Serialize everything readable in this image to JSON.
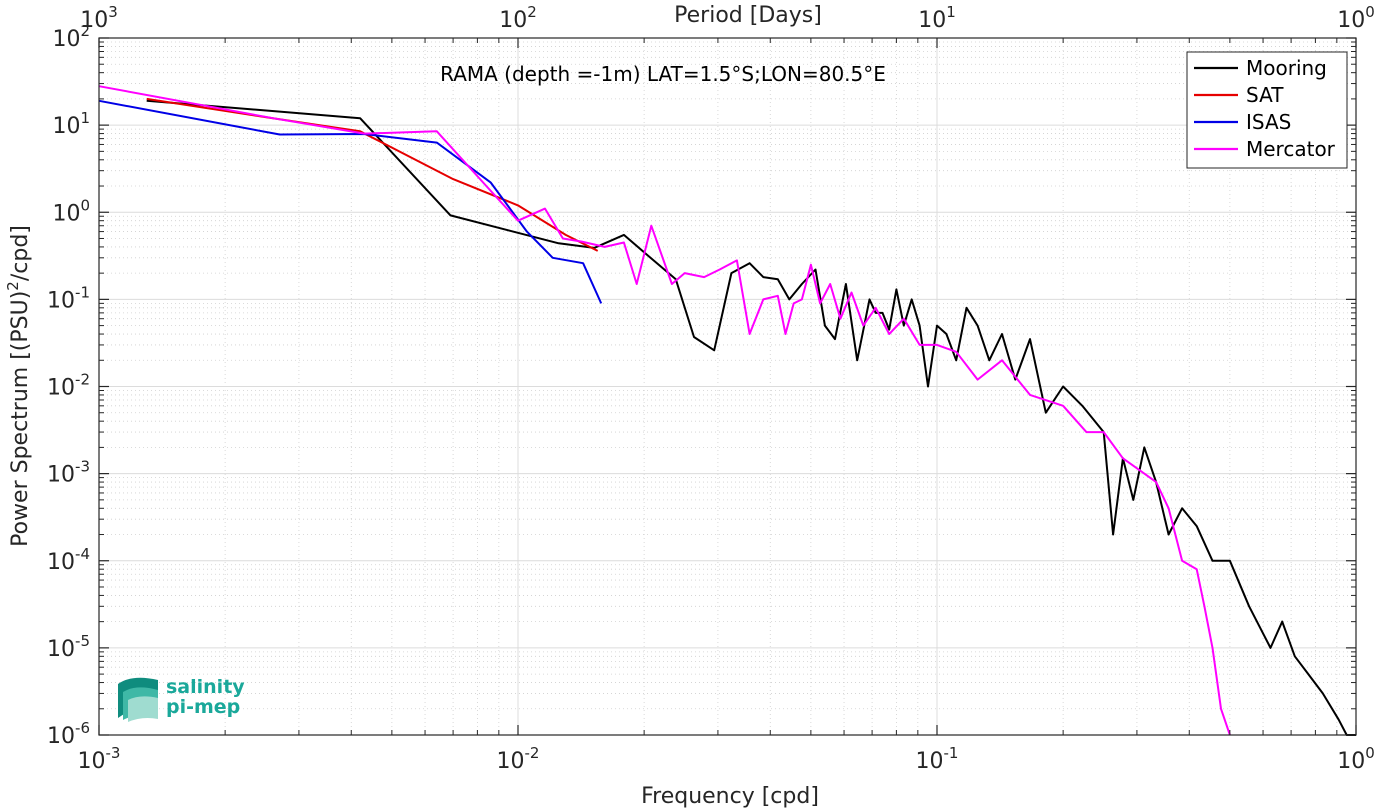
{
  "chart_data": {
    "type": "line",
    "title": "RAMA (depth =-1m) LAT=1.5°S;LON=80.5°E",
    "xlabel": "Frequency [cpd]",
    "ylabel_main": "Power Spectrum [(PSU)",
    "ylabel_sup": "2",
    "ylabel_tail": "/cpd]",
    "top_axis_label": "Period [Days]",
    "x_scale": "log",
    "y_scale": "log",
    "xlim": [
      0.001,
      1
    ],
    "ylim": [
      1e-06,
      100
    ],
    "grid": true,
    "legend_position": "top-right",
    "x_ticks": [
      {
        "base": "10",
        "exp": "-3",
        "value": 0.001
      },
      {
        "base": "10",
        "exp": "-2",
        "value": 0.01
      },
      {
        "base": "10",
        "exp": "-1",
        "value": 0.1
      },
      {
        "base": "10",
        "exp": "0",
        "value": 1
      }
    ],
    "top_ticks": [
      {
        "base": "10",
        "exp": "3",
        "value": 0.001
      },
      {
        "base": "10",
        "exp": "2",
        "value": 0.01
      },
      {
        "base": "10",
        "exp": "1",
        "value": 0.1
      },
      {
        "base": "10",
        "exp": "0",
        "value": 1
      }
    ],
    "y_ticks": [
      {
        "base": "10",
        "exp": "2",
        "value": 100
      },
      {
        "base": "10",
        "exp": "1",
        "value": 10
      },
      {
        "base": "10",
        "exp": "0",
        "value": 1
      },
      {
        "base": "10",
        "exp": "-1",
        "value": 0.1
      },
      {
        "base": "10",
        "exp": "-2",
        "value": 0.01
      },
      {
        "base": "10",
        "exp": "-3",
        "value": 0.001
      },
      {
        "base": "10",
        "exp": "-4",
        "value": 0.0001
      },
      {
        "base": "10",
        "exp": "-5",
        "value": 1e-05
      },
      {
        "base": "10",
        "exp": "-6",
        "value": 1e-06
      }
    ],
    "series": [
      {
        "name": "Mooring",
        "color": "#000000",
        "x": [
          0.0013,
          0.0042,
          0.0069,
          0.0125,
          0.0152,
          0.0179,
          0.0204,
          0.0238,
          0.0263,
          0.0294,
          0.0323,
          0.0357,
          0.0385,
          0.0417,
          0.0444,
          0.0476,
          0.0513,
          0.054,
          0.0571,
          0.0606,
          0.0645,
          0.069,
          0.0714,
          0.0741,
          0.0769,
          0.08,
          0.0833,
          0.087,
          0.0909,
          0.0952,
          0.1,
          0.1053,
          0.1111,
          0.1176,
          0.125,
          0.1333,
          0.1429,
          0.1538,
          0.1667,
          0.1818,
          0.2,
          0.2222,
          0.25,
          0.2632,
          0.2778,
          0.2941,
          0.3125,
          0.3333,
          0.3571,
          0.3846,
          0.4167,
          0.4545,
          0.5,
          0.5556,
          0.625,
          0.6667,
          0.7143,
          0.7692,
          0.8333,
          0.9091,
          0.95,
          1.0
        ],
        "y": [
          19,
          12,
          0.92,
          0.44,
          0.39,
          0.55,
          0.32,
          0.17,
          0.037,
          0.026,
          0.2,
          0.26,
          0.18,
          0.17,
          0.1,
          0.15,
          0.22,
          0.05,
          0.035,
          0.15,
          0.02,
          0.1,
          0.07,
          0.07,
          0.045,
          0.13,
          0.05,
          0.1,
          0.05,
          0.01,
          0.05,
          0.04,
          0.02,
          0.08,
          0.05,
          0.02,
          0.04,
          0.012,
          0.035,
          0.005,
          0.01,
          0.006,
          0.003,
          0.0002,
          0.0015,
          0.0005,
          0.002,
          0.0008,
          0.0002,
          0.0004,
          0.00025,
          0.0001,
          0.0001,
          3e-05,
          1e-05,
          2e-05,
          8e-06,
          5e-06,
          3e-06,
          1.5e-06,
          1e-06,
          1e-06
        ]
      },
      {
        "name": "SAT",
        "color": "#e60000",
        "x": [
          0.0013,
          0.0026,
          0.0042,
          0.007,
          0.01,
          0.013,
          0.0155
        ],
        "y": [
          20,
          12,
          8.5,
          2.4,
          1.2,
          0.55,
          0.36
        ]
      },
      {
        "name": "ISAS",
        "color": "#0000e6",
        "x": [
          0.001,
          0.0027,
          0.0043,
          0.0064,
          0.0086,
          0.0105,
          0.0121,
          0.0143,
          0.0158
        ],
        "y": [
          19,
          7.8,
          7.9,
          6.3,
          2.2,
          0.6,
          0.3,
          0.26,
          0.09
        ]
      },
      {
        "name": "Mercator",
        "color": "#ff00ff",
        "x": [
          0.001,
          0.0026,
          0.0043,
          0.0064,
          0.0084,
          0.01,
          0.0116,
          0.0128,
          0.0142,
          0.0161,
          0.0179,
          0.0192,
          0.0208,
          0.0233,
          0.025,
          0.0278,
          0.0303,
          0.0333,
          0.0357,
          0.0385,
          0.0417,
          0.0435,
          0.0455,
          0.0476,
          0.05,
          0.0526,
          0.0556,
          0.0588,
          0.0625,
          0.0667,
          0.0714,
          0.0769,
          0.0833,
          0.0909,
          0.1,
          0.1111,
          0.125,
          0.1429,
          0.1667,
          0.2,
          0.2273,
          0.25,
          0.2778,
          0.3125,
          0.3333,
          0.3571,
          0.3846,
          0.4167,
          0.4348,
          0.4545,
          0.4762,
          0.5
        ],
        "y": [
          28,
          12,
          8,
          8.5,
          2,
          0.8,
          1.1,
          0.5,
          0.46,
          0.4,
          0.45,
          0.15,
          0.7,
          0.15,
          0.2,
          0.18,
          0.22,
          0.28,
          0.04,
          0.1,
          0.11,
          0.04,
          0.09,
          0.1,
          0.25,
          0.09,
          0.15,
          0.06,
          0.12,
          0.05,
          0.08,
          0.04,
          0.06,
          0.03,
          0.03,
          0.025,
          0.012,
          0.02,
          0.008,
          0.006,
          0.003,
          0.003,
          0.0015,
          0.001,
          0.0008,
          0.0004,
          0.0001,
          8e-05,
          3e-05,
          1e-05,
          2e-06,
          1e-06
        ]
      }
    ]
  },
  "logo": {
    "line1": "salinity",
    "line2": "pi-mep"
  }
}
